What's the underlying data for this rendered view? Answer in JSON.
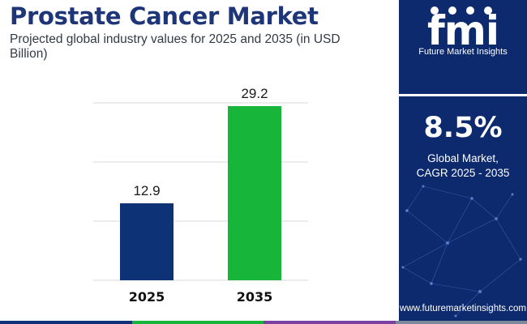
{
  "header": {
    "title": "Prostate Cancer Market",
    "subtitle": "Projected global industry values for 2025 and 2035 (in USD Billion)"
  },
  "colors": {
    "title": "#1e3578",
    "bar_2025": "#0d3275",
    "bar_2035": "#17b53a",
    "grid": "#d9d9d9",
    "panel": "#0d2a6e",
    "strip": [
      "#0d3275",
      "#17b53a",
      "#7b3fa0",
      "#7a8a9c"
    ]
  },
  "chart_data": {
    "type": "bar",
    "categories": [
      "2025",
      "2035"
    ],
    "values": [
      12.9,
      29.2
    ],
    "value_labels": [
      "12.9",
      "29.2"
    ],
    "title": "",
    "xlabel": "",
    "ylabel": "",
    "ylim": [
      0,
      29.2
    ],
    "grid": true,
    "legend": "none"
  },
  "brand": {
    "logo_text": "fmi",
    "name": "Future Market Insights",
    "logo_icon": "industry-icons"
  },
  "cagr": {
    "value": "8.5%",
    "label_line1": "Global Market,",
    "label_line2": "CAGR 2025 - 2035"
  },
  "footer": {
    "website": "www.futuremarketinsights.com"
  }
}
